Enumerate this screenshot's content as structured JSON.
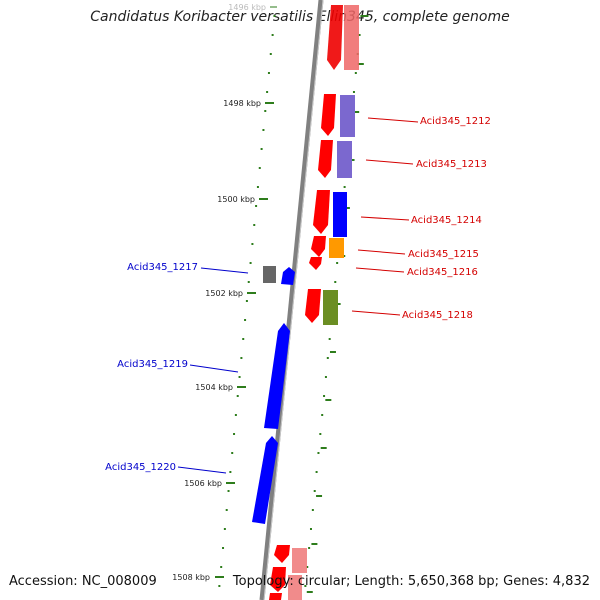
{
  "title": "Candidatus Koribacter versatilis Ellin345, complete genome",
  "footer": {
    "accession": "Accession: NC_008009",
    "info": "Topology: circular; Length: 5,650,368 bp; Genes: 4,832"
  },
  "colors": {
    "backbone": "#808080",
    "tick": "#2e7d1c",
    "forward_label": "#d40000",
    "reverse_label": "#0000cc"
  },
  "ruler": [
    {
      "label": "1496 kbp",
      "faded": true
    },
    {
      "label": "1498 kbp"
    },
    {
      "label": "1500 kbp"
    },
    {
      "label": "1502 kbp"
    },
    {
      "label": "1504 kbp"
    },
    {
      "label": "1506 kbp"
    },
    {
      "label": "1508 kbp"
    }
  ],
  "gene_labels": [
    {
      "text": "Acid345_1212",
      "strand": "forward"
    },
    {
      "text": "Acid345_1213",
      "strand": "forward"
    },
    {
      "text": "Acid345_1214",
      "strand": "forward"
    },
    {
      "text": "Acid345_1215",
      "strand": "forward"
    },
    {
      "text": "Acid345_1216",
      "strand": "forward"
    },
    {
      "text": "Acid345_1218",
      "strand": "forward"
    },
    {
      "text": "Acid345_1217",
      "strand": "reverse"
    },
    {
      "text": "Acid345_1219",
      "strand": "reverse"
    },
    {
      "text": "Acid345_1220",
      "strand": "reverse"
    }
  ]
}
